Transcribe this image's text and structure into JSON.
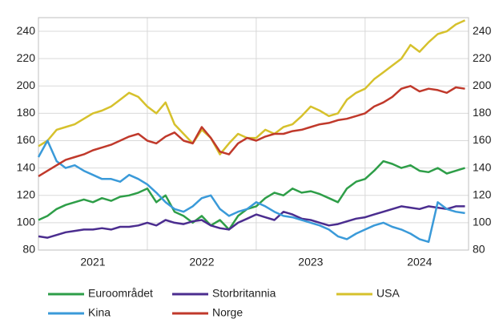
{
  "chart_data": {
    "type": "line",
    "x": [
      2021.0,
      2021.083,
      2021.167,
      2021.25,
      2021.333,
      2021.417,
      2021.5,
      2021.583,
      2021.667,
      2021.75,
      2021.833,
      2021.917,
      2022.0,
      2022.083,
      2022.167,
      2022.25,
      2022.333,
      2022.417,
      2022.5,
      2022.583,
      2022.667,
      2022.75,
      2022.833,
      2022.917,
      2023.0,
      2023.083,
      2023.167,
      2023.25,
      2023.333,
      2023.417,
      2023.5,
      2023.583,
      2023.667,
      2023.75,
      2023.833,
      2023.917,
      2024.0,
      2024.083,
      2024.167,
      2024.25,
      2024.333,
      2024.417,
      2024.5,
      2024.583,
      2024.667,
      2024.75,
      2024.833,
      2024.917
    ],
    "xlim": [
      2021.0,
      2024.95
    ],
    "xticks": [
      {
        "value": 2021.5,
        "label": "2021"
      },
      {
        "value": 2022.5,
        "label": "2022"
      },
      {
        "value": 2023.5,
        "label": "2023"
      },
      {
        "value": 2024.5,
        "label": "2024"
      }
    ],
    "xgrid": [
      2022,
      2023,
      2024
    ],
    "ylim": [
      80,
      250
    ],
    "yticks": [
      80,
      100,
      120,
      140,
      160,
      180,
      200,
      220,
      240
    ],
    "y2lim": [
      80,
      250
    ],
    "y2ticks": [
      80,
      100,
      120,
      140,
      160,
      180,
      200,
      220,
      240
    ],
    "grid": true,
    "legend": "bottom",
    "series": [
      {
        "name": "Euroområdet",
        "color": "#2e9e48",
        "values": [
          102,
          105,
          110,
          113,
          115,
          117,
          115,
          118,
          116,
          119,
          120,
          122,
          125,
          115,
          120,
          108,
          105,
          100,
          105,
          98,
          102,
          95,
          105,
          110,
          112,
          118,
          122,
          120,
          125,
          122,
          123,
          121,
          118,
          115,
          125,
          130,
          132,
          138,
          145,
          143,
          140,
          142,
          138,
          137,
          140,
          136,
          138,
          140
        ]
      },
      {
        "name": "Storbritannia",
        "color": "#4b2d8f",
        "values": [
          90,
          89,
          91,
          93,
          94,
          95,
          95,
          96,
          95,
          97,
          97,
          98,
          100,
          98,
          102,
          100,
          99,
          101,
          102,
          98,
          96,
          95,
          100,
          103,
          106,
          104,
          102,
          108,
          106,
          103,
          102,
          100,
          98,
          99,
          101,
          103,
          104,
          106,
          108,
          110,
          112,
          111,
          110,
          112,
          111,
          110,
          112,
          112
        ]
      },
      {
        "name": "USA",
        "color": "#d6c12c",
        "values": [
          156,
          160,
          168,
          170,
          172,
          176,
          180,
          182,
          185,
          190,
          195,
          192,
          185,
          180,
          188,
          172,
          165,
          158,
          168,
          162,
          150,
          158,
          165,
          162,
          162,
          168,
          165,
          170,
          172,
          178,
          185,
          182,
          178,
          180,
          190,
          195,
          198,
          205,
          210,
          215,
          220,
          230,
          225,
          232,
          238,
          240,
          245,
          248
        ]
      },
      {
        "name": "Kina",
        "color": "#3a9ad9",
        "values": [
          148,
          160,
          145,
          140,
          142,
          138,
          135,
          132,
          132,
          130,
          135,
          132,
          128,
          122,
          115,
          110,
          108,
          112,
          118,
          120,
          110,
          105,
          108,
          110,
          115,
          112,
          108,
          105,
          104,
          102,
          100,
          98,
          95,
          90,
          88,
          92,
          95,
          98,
          100,
          97,
          95,
          92,
          88,
          86,
          115,
          110,
          108,
          107
        ]
      },
      {
        "name": "Norge",
        "color": "#c0392b",
        "values": [
          134,
          138,
          142,
          146,
          148,
          150,
          153,
          155,
          157,
          160,
          163,
          165,
          160,
          158,
          163,
          166,
          160,
          158,
          170,
          162,
          152,
          150,
          158,
          162,
          160,
          163,
          165,
          165,
          167,
          168,
          170,
          172,
          173,
          175,
          176,
          178,
          180,
          185,
          188,
          192,
          198,
          200,
          196,
          198,
          197,
          195,
          199,
          198
        ]
      }
    ]
  }
}
